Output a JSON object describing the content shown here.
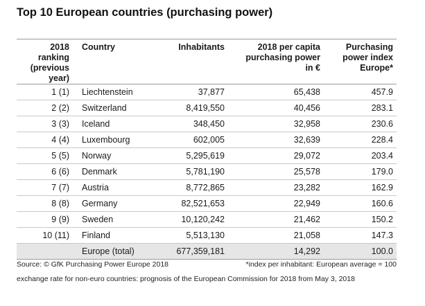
{
  "title": "Top 10 European countries (purchasing power)",
  "headers": {
    "rank": [
      "2018",
      "ranking",
      "(previous",
      "year)"
    ],
    "country": [
      "Country"
    ],
    "inhabitants": [
      "Inhabitants"
    ],
    "per_capita": [
      "2018 per capita",
      "purchasing power",
      "in €"
    ],
    "index": [
      "Purchasing",
      "power index",
      "Europe*"
    ]
  },
  "rows": [
    {
      "rank": "1 (1)",
      "country": "Liechtenstein",
      "inhabitants": "37,877",
      "per_capita": "65,438",
      "index": "457.9"
    },
    {
      "rank": "2 (2)",
      "country": "Switzerland",
      "inhabitants": "8,419,550",
      "per_capita": "40,456",
      "index": "283.1"
    },
    {
      "rank": "3 (3)",
      "country": "Iceland",
      "inhabitants": "348,450",
      "per_capita": "32,958",
      "index": "230.6"
    },
    {
      "rank": "4 (4)",
      "country": "Luxembourg",
      "inhabitants": "602,005",
      "per_capita": "32,639",
      "index": "228.4"
    },
    {
      "rank": "5 (5)",
      "country": "Norway",
      "inhabitants": "5,295,619",
      "per_capita": "29,072",
      "index": "203.4"
    },
    {
      "rank": "6 (6)",
      "country": "Denmark",
      "inhabitants": "5,781,190",
      "per_capita": "25,578",
      "index": "179.0"
    },
    {
      "rank": "7 (7)",
      "country": "Austria",
      "inhabitants": "8,772,865",
      "per_capita": "23,282",
      "index": "162.9"
    },
    {
      "rank": "8 (8)",
      "country": "Germany",
      "inhabitants": "82,521,653",
      "per_capita": "22,949",
      "index": "160.6"
    },
    {
      "rank": "9 (9)",
      "country": "Sweden",
      "inhabitants": "10,120,242",
      "per_capita": "21,462",
      "index": "150.2"
    },
    {
      "rank": "10 (11)",
      "country": "Finland",
      "inhabitants": "5,513,130",
      "per_capita": "21,058",
      "index": "147.3"
    }
  ],
  "total": {
    "rank": "",
    "country": "Europe (total)",
    "inhabitants": "677,359,181",
    "per_capita": "14,292",
    "index": "100.0"
  },
  "footer": {
    "source": "Source: © GfK Purchasing Power Europe 2018",
    "note": "*index per inhabitant: European average = 100",
    "exchange": "exchange rate for non-euro countries: prognosis of the European Commission for 2018 from May 3, 2018"
  }
}
